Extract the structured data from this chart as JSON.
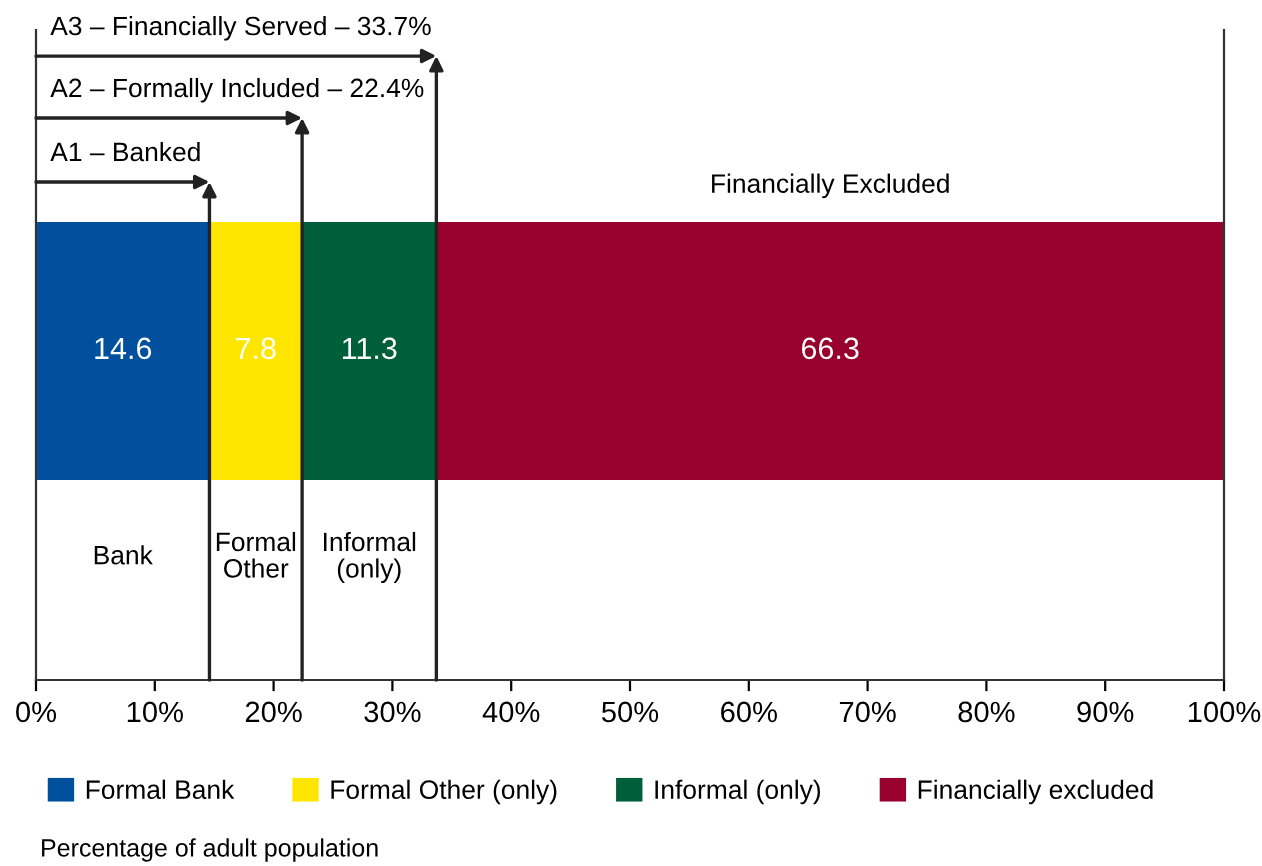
{
  "chart_data": {
    "type": "bar",
    "orientation": "horizontal",
    "stacked": true,
    "categories": [
      null
    ],
    "series": [
      {
        "name": "Formal Bank",
        "color": "#00509e",
        "values": [
          14.6
        ]
      },
      {
        "name": "Formal Other (only)",
        "color": "#ffe600",
        "values": [
          7.8
        ]
      },
      {
        "name": "Informal (only)",
        "color": "#005f3b",
        "values": [
          11.3
        ]
      },
      {
        "name": "Financially excluded",
        "color": "#98002e",
        "values": [
          66.3
        ]
      }
    ],
    "xlim": [
      0,
      100
    ],
    "xticks": [
      {
        "value": 0,
        "label": "0%"
      },
      {
        "value": 10,
        "label": "10%"
      },
      {
        "value": 20,
        "label": "20%"
      },
      {
        "value": 30,
        "label": "30%"
      },
      {
        "value": 40,
        "label": "40%"
      },
      {
        "value": 50,
        "label": "50%"
      },
      {
        "value": 60,
        "label": "60%"
      },
      {
        "value": 70,
        "label": "70%"
      },
      {
        "value": 80,
        "label": "80%"
      },
      {
        "value": 90,
        "label": "90%"
      },
      {
        "value": 100,
        "label": "100%"
      }
    ],
    "tick_labels": "x",
    "xlabel": "Percentage of adult population",
    "data_labels": true,
    "legend": "bottom",
    "grid": false,
    "annotations": [
      "A1 – Banked",
      "A2 – Formally Included – 22.4%",
      "A3 – Financially Served – 33.7%",
      "Financially Excluded",
      "Bank",
      "Formal\nOther",
      "Informal\n(only)"
    ]
  }
}
